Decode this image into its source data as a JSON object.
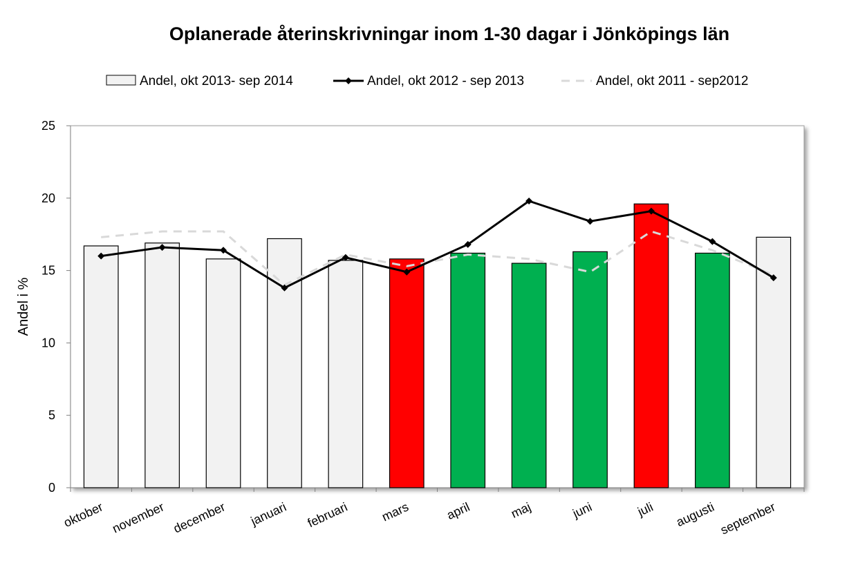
{
  "chart_data": {
    "type": "bar",
    "title": "Oplanerade återinskrivningar inom 1-30 dagar i Jönköpings län",
    "xlabel": "",
    "ylabel": "Andel i %",
    "ylim": [
      0,
      25
    ],
    "yticks": [
      "0",
      "5",
      "10",
      "15",
      "20",
      "25"
    ],
    "grid": false,
    "legend_position": "top",
    "categories": [
      "oktober",
      "november",
      "december",
      "januari",
      "februari",
      "mars",
      "april",
      "maj",
      "juni",
      "juli",
      "augusti",
      "september"
    ],
    "series": [
      {
        "name": "Andel, okt 2013- sep 2014",
        "type": "bar",
        "values": [
          16.7,
          16.9,
          15.8,
          17.2,
          15.7,
          15.8,
          16.2,
          15.5,
          16.3,
          19.6,
          16.2,
          17.3
        ],
        "bar_colors": [
          "#f2f2f2",
          "#f2f2f2",
          "#f2f2f2",
          "#f2f2f2",
          "#f2f2f2",
          "#ff0000",
          "#00b050",
          "#00b050",
          "#00b050",
          "#ff0000",
          "#00b050",
          "#f2f2f2"
        ]
      },
      {
        "name": "Andel, okt 2012 - sep 2013",
        "type": "line",
        "color": "#000000",
        "marker": "diamond",
        "values": [
          16.0,
          16.6,
          16.4,
          13.8,
          15.9,
          14.9,
          16.8,
          19.8,
          18.4,
          19.1,
          17.0,
          14.5
        ]
      },
      {
        "name": "Andel, okt 2011 - sep2012",
        "type": "line",
        "color": "#d9d9d9",
        "dashed": true,
        "values": [
          17.3,
          17.7,
          17.7,
          14.0,
          16.1,
          15.3,
          16.1,
          15.8,
          14.9,
          17.7,
          16.4,
          14.7
        ]
      }
    ]
  }
}
